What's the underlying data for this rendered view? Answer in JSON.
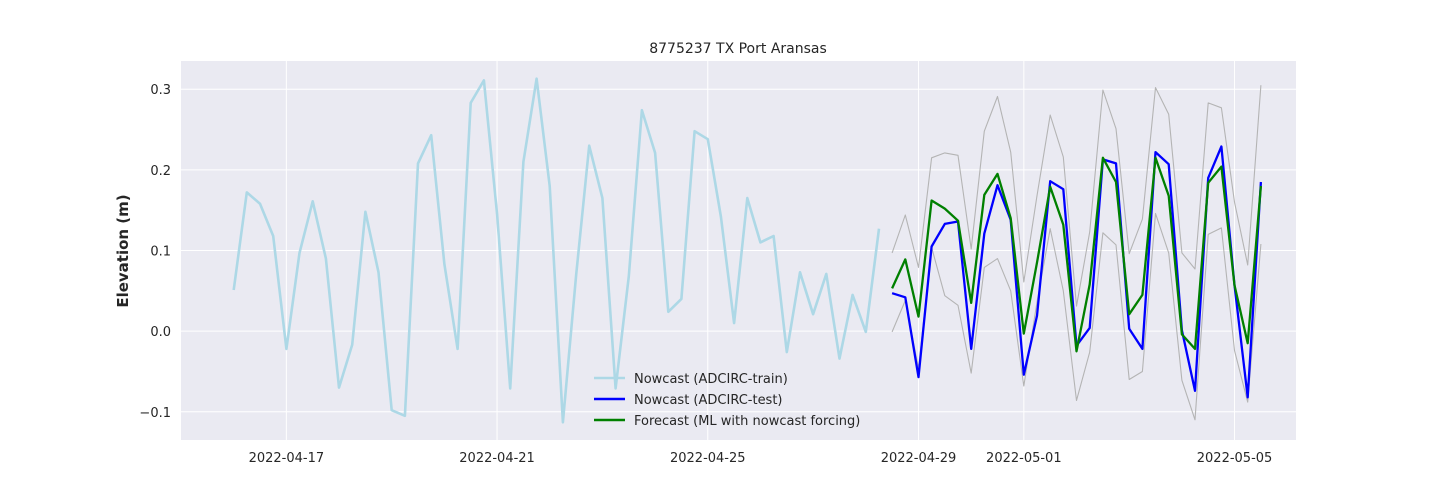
{
  "chart_data": {
    "type": "line",
    "title": "8775237 TX Port Aransas",
    "xlabel": "",
    "ylabel": "Elevation (m)",
    "x_axis": "date",
    "xlim": [
      "2022-04-15T00:00",
      "2022-05-06T04:00"
    ],
    "ylim": [
      -0.135,
      0.335
    ],
    "x_ticks": [
      "2022-04-17",
      "2022-04-21",
      "2022-04-25",
      "2022-04-29",
      "2022-05-01",
      "2022-05-05"
    ],
    "y_ticks": [
      -0.1,
      0.0,
      0.1,
      0.2,
      0.3
    ],
    "y_tick_labels": [
      "−0.1",
      "0.0",
      "0.1",
      "0.2",
      "0.3"
    ],
    "grid": true,
    "legend_position": "lower-center",
    "background": "#eaeaf2",
    "series": [
      {
        "name": "Nowcast (ADCIRC-train)",
        "color": "#add8e6",
        "x_start": "2022-04-16T00:00",
        "step_hours": 6,
        "values": [
          0.051,
          0.172,
          0.158,
          0.118,
          -0.022,
          0.097,
          0.161,
          0.09,
          -0.07,
          -0.017,
          0.148,
          0.073,
          -0.098,
          -0.105,
          0.208,
          0.243,
          0.083,
          -0.022,
          0.283,
          0.311,
          0.145,
          -0.071,
          0.21,
          0.313,
          0.18,
          -0.113,
          0.069,
          0.23,
          0.165,
          -0.071,
          0.068,
          0.274,
          0.221,
          0.024,
          0.04,
          0.248,
          0.238,
          0.142,
          0.01,
          0.165,
          0.11,
          0.118,
          -0.026,
          0.073,
          0.021,
          0.071,
          -0.034,
          0.045,
          -0.001,
          0.127
        ]
      },
      {
        "name": "Nowcast (ADCIRC-test)",
        "color": "#0000ff",
        "x_start": "2022-04-28T12:00",
        "step_hours": 6,
        "values": [
          0.047,
          0.042,
          -0.057,
          0.105,
          0.133,
          0.136,
          -0.022,
          0.121,
          0.181,
          0.138,
          -0.054,
          0.019,
          0.186,
          0.176,
          -0.018,
          0.004,
          0.213,
          0.208,
          0.003,
          -0.022,
          0.222,
          0.207,
          0.001,
          -0.074,
          0.19,
          0.229,
          0.057,
          -0.082,
          0.185
        ]
      },
      {
        "name": "Forecast (ML with nowcast forcing)",
        "color": "#008000",
        "x_start": "2022-04-28T12:00",
        "step_hours": 6,
        "values": [
          0.053,
          0.089,
          0.018,
          0.162,
          0.152,
          0.137,
          0.035,
          0.169,
          0.195,
          0.14,
          -0.003,
          0.085,
          0.179,
          0.132,
          -0.025,
          0.058,
          0.215,
          0.185,
          0.021,
          0.045,
          0.215,
          0.168,
          -0.004,
          -0.022,
          0.184,
          0.204,
          0.057,
          -0.015,
          0.18
        ]
      },
      {
        "color": "#b4b4b4",
        "x_start": "2022-04-28T12:00",
        "step_hours": 6,
        "values": [
          0.097,
          0.144,
          0.079,
          0.215,
          0.221,
          0.218,
          0.102,
          0.248,
          0.291,
          0.222,
          0.061,
          0.168,
          0.268,
          0.216,
          0.031,
          0.123,
          0.299,
          0.251,
          0.096,
          0.139,
          0.302,
          0.269,
          0.097,
          0.077,
          0.283,
          0.277,
          0.16,
          0.082,
          0.305
        ]
      },
      {
        "color": "#b4b4b4",
        "x_start": "2022-04-28T12:00",
        "step_hours": 6,
        "values": [
          -0.001,
          0.038,
          -0.046,
          0.104,
          0.044,
          0.032,
          -0.052,
          0.079,
          0.09,
          0.05,
          -0.068,
          0.036,
          0.127,
          0.05,
          -0.086,
          -0.026,
          0.122,
          0.107,
          -0.06,
          -0.05,
          0.146,
          0.097,
          -0.061,
          -0.11,
          0.12,
          0.128,
          -0.024,
          -0.088,
          0.108
        ]
      }
    ]
  }
}
